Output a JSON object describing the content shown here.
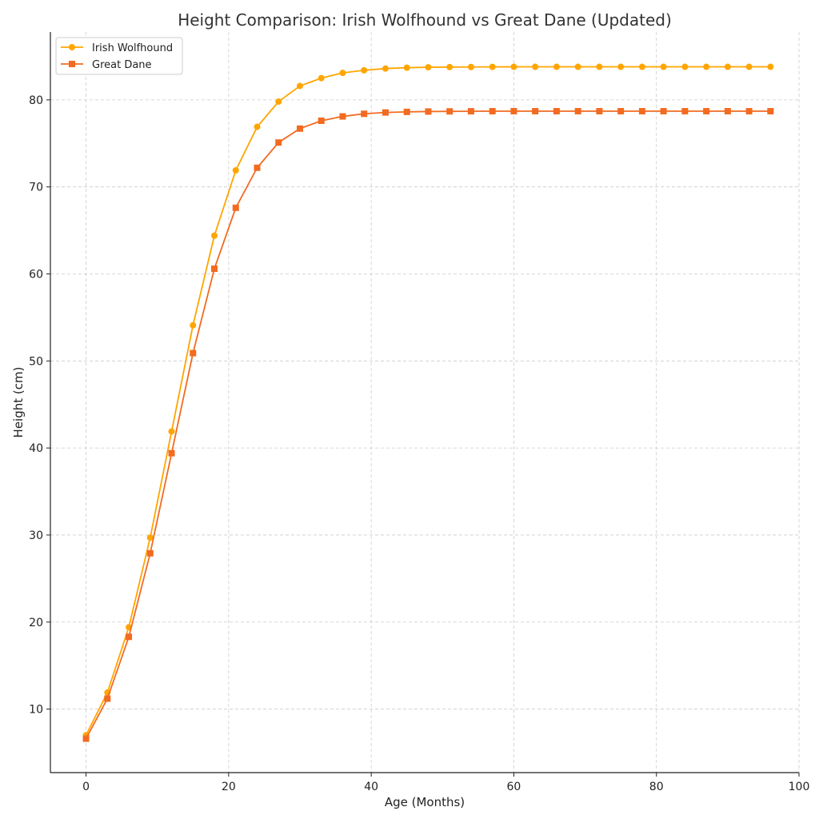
{
  "chart_data": {
    "type": "line",
    "title": "Height Comparison: Irish Wolfhound vs Great Dane (Updated)",
    "xlabel": "Age (Months)",
    "ylabel": "Height (cm)",
    "xlim": [
      -5,
      100
    ],
    "ylim": [
      2.7,
      87.8
    ],
    "xticks": [
      0,
      20,
      40,
      60,
      80,
      100
    ],
    "yticks": [
      10,
      20,
      30,
      40,
      50,
      60,
      70,
      80
    ],
    "grid": true,
    "legend_position": "top-left",
    "x": [
      0,
      3,
      6,
      9,
      12,
      15,
      18,
      21,
      24,
      27,
      30,
      33,
      36,
      39,
      42,
      45,
      48,
      51,
      54,
      57,
      60,
      63,
      66,
      69,
      72,
      75,
      78,
      81,
      84,
      87,
      90,
      93,
      96
    ],
    "series": [
      {
        "name": "Irish Wolfhound",
        "color": "#FFA500",
        "marker": "circle",
        "values": [
          7.0,
          11.9,
          19.4,
          29.7,
          41.9,
          54.1,
          64.4,
          71.9,
          76.9,
          79.8,
          81.6,
          82.5,
          83.1,
          83.4,
          83.6,
          83.7,
          83.75,
          83.77,
          83.78,
          83.79,
          83.8,
          83.8,
          83.8,
          83.8,
          83.8,
          83.8,
          83.8,
          83.8,
          83.8,
          83.8,
          83.8,
          83.8,
          83.8
        ]
      },
      {
        "name": "Great Dane",
        "color": "#F26B21",
        "marker": "square",
        "values": [
          6.6,
          11.2,
          18.3,
          27.9,
          39.4,
          50.9,
          60.6,
          67.6,
          72.2,
          75.1,
          76.7,
          77.6,
          78.1,
          78.4,
          78.55,
          78.62,
          78.66,
          78.68,
          78.69,
          78.7,
          78.7,
          78.7,
          78.7,
          78.7,
          78.7,
          78.7,
          78.7,
          78.7,
          78.7,
          78.7,
          78.7,
          78.7,
          78.7
        ]
      }
    ]
  }
}
